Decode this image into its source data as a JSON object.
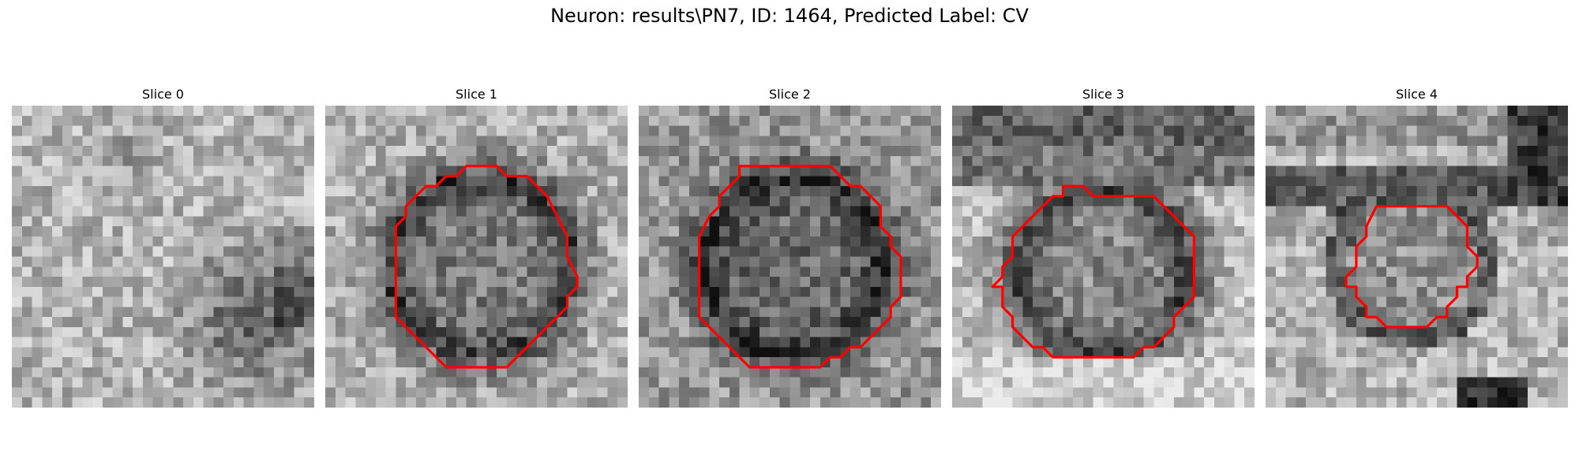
{
  "figure": {
    "title": "Neuron: results\\PN7, ID: 1464, Predicted Label: CV"
  },
  "colors": {
    "contour": "#ff0000"
  },
  "slices": [
    {
      "title": "Slice 0",
      "has_contour": false
    },
    {
      "title": "Slice 1",
      "has_contour": true
    },
    {
      "title": "Slice 2",
      "has_contour": true
    },
    {
      "title": "Slice 3",
      "has_contour": true
    },
    {
      "title": "Slice 4",
      "has_contour": true
    }
  ]
}
